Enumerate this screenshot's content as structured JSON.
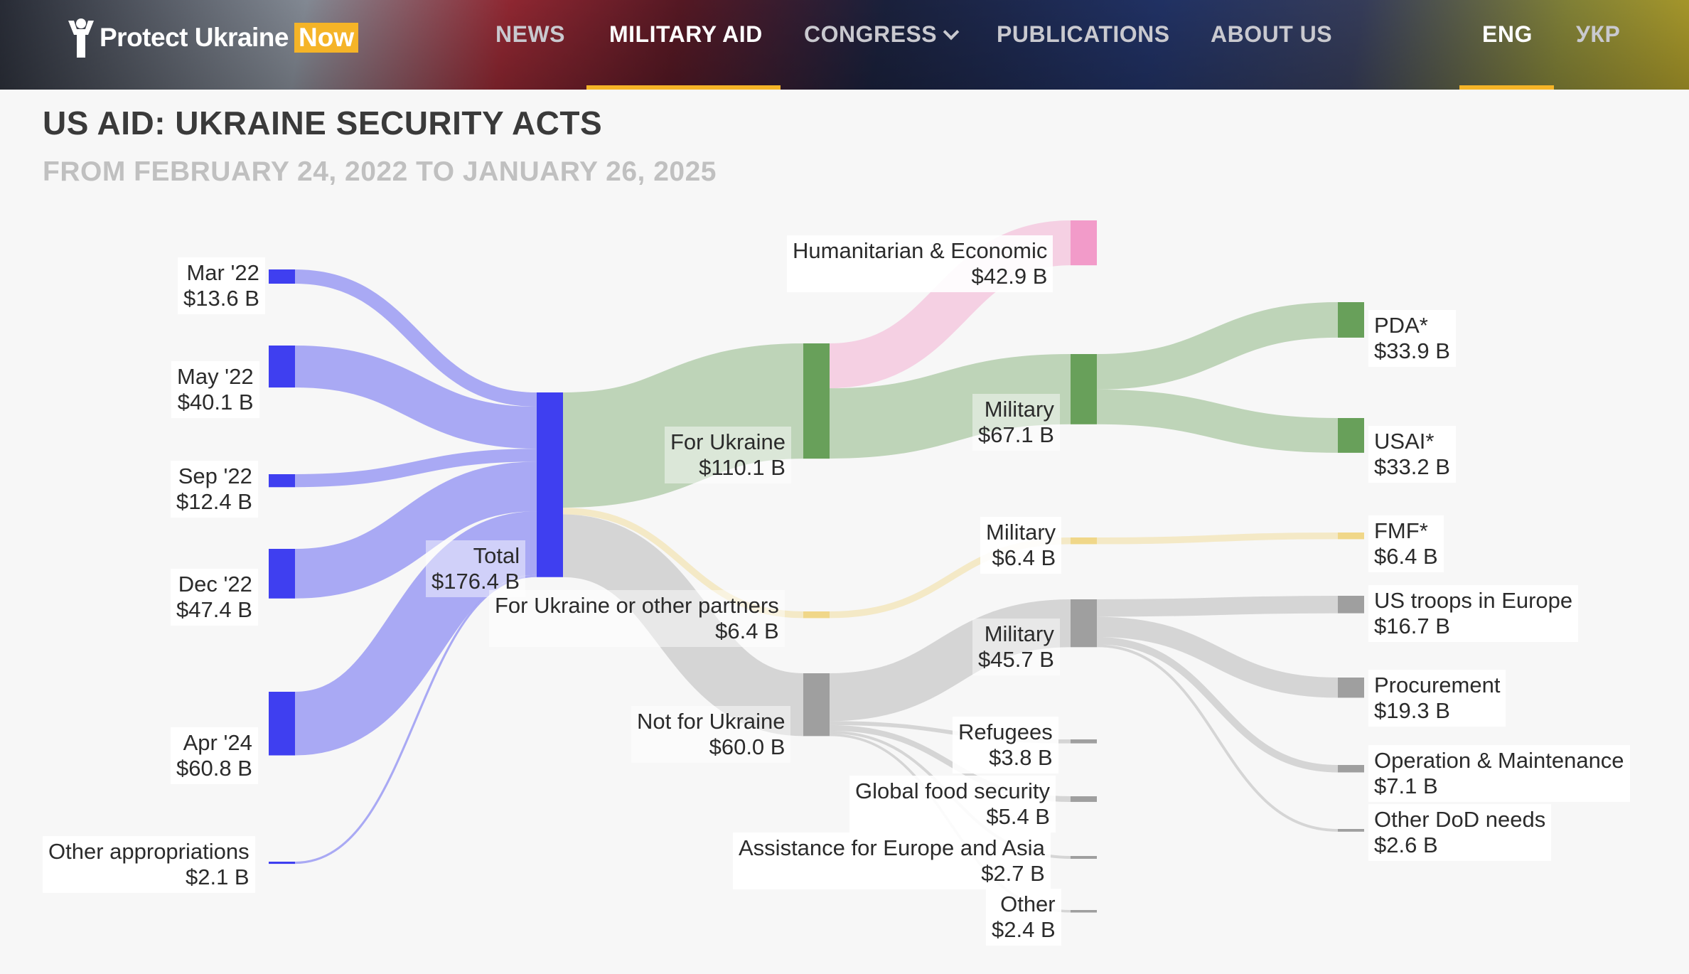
{
  "header": {
    "logo": {
      "text": "Protect Ukraine",
      "badge": "Now",
      "icon": "person-raised-arms-icon"
    },
    "nav": [
      {
        "label": "NEWS"
      },
      {
        "label": "MILITARY AID",
        "active": true
      },
      {
        "label": "CONGRESS",
        "dropdown": true
      },
      {
        "label": "PUBLICATIONS"
      },
      {
        "label": "ABOUT US"
      }
    ],
    "lang": [
      {
        "label": "ENG",
        "active": true
      },
      {
        "label": "УКР"
      }
    ]
  },
  "page": {
    "title": "US AID: UKRAINE SECURITY ACTS",
    "subtitle": "FROM FEBRUARY 24, 2022 TO JANUARY 26, 2025"
  },
  "colors": {
    "accent": "#f5b427",
    "sources": "#3f3ff0",
    "for_ukraine": "#68a05a",
    "humanitarian": "#f29bc9",
    "fmf": "#f0d789",
    "not_for_ukraine": "#9f9f9f"
  },
  "chart_data": {
    "type": "sankey",
    "unit": "$ B",
    "nodes": [
      {
        "id": "mar22",
        "name": "Mar '22",
        "value_label": "$13.6 B",
        "value": 13.6
      },
      {
        "id": "may22",
        "name": "May '22",
        "value_label": "$40.1 B",
        "value": 40.1
      },
      {
        "id": "sep22",
        "name": "Sep '22",
        "value_label": "$12.4 B",
        "value": 12.4
      },
      {
        "id": "dec22",
        "name": "Dec '22",
        "value_label": "$47.4 B",
        "value": 47.4
      },
      {
        "id": "apr24",
        "name": "Apr '24",
        "value_label": "$60.8 B",
        "value": 60.8
      },
      {
        "id": "other_app",
        "name": "Other appropriations",
        "value_label": "$2.1 B",
        "value": 2.1
      },
      {
        "id": "total",
        "name": "Total",
        "value_label": "$176.4 B",
        "value": 176.4
      },
      {
        "id": "for_ukraine",
        "name": "For Ukraine",
        "value_label": "$110.1 B",
        "value": 110.1
      },
      {
        "id": "partners",
        "name": "For Ukraine or other partners",
        "value_label": "$6.4 B",
        "value": 6.4
      },
      {
        "id": "not_ukraine",
        "name": "Not for Ukraine",
        "value_label": "$60.0 B",
        "value": 60.0
      },
      {
        "id": "humanitarian",
        "name": "Humanitarian & Economic",
        "value_label": "$42.9 B",
        "value": 42.9
      },
      {
        "id": "mil_ua",
        "name": "Military",
        "value_label": "$67.1 B",
        "value": 67.1
      },
      {
        "id": "mil_fmf",
        "name": "Military",
        "value_label": "$6.4 B",
        "value": 6.4
      },
      {
        "id": "mil_other",
        "name": "Military",
        "value_label": "$45.7 B",
        "value": 45.7
      },
      {
        "id": "refugees",
        "name": "Refugees",
        "value_label": "$3.8 B",
        "value": 3.8
      },
      {
        "id": "food",
        "name": "Global food security",
        "value_label": "$5.4 B",
        "value": 5.4
      },
      {
        "id": "europe_asia",
        "name": "Assistance for Europe and Asia",
        "value_label": "$2.7 B",
        "value": 2.7
      },
      {
        "id": "other",
        "name": "Other",
        "value_label": "$2.4 B",
        "value": 2.4
      },
      {
        "id": "pda",
        "name": "PDA*",
        "value_label": "$33.9 B",
        "value": 33.9
      },
      {
        "id": "usai",
        "name": "USAI*",
        "value_label": "$33.2 B",
        "value": 33.2
      },
      {
        "id": "fmf",
        "name": "FMF*",
        "value_label": "$6.4 B",
        "value": 6.4
      },
      {
        "id": "troops",
        "name": "US troops in Europe",
        "value_label": "$16.7 B",
        "value": 16.7
      },
      {
        "id": "procurement",
        "name": "Procurement",
        "value_label": "$19.3 B",
        "value": 19.3
      },
      {
        "id": "om",
        "name": "Operation & Maintenance",
        "value_label": "$7.1 B",
        "value": 7.1
      },
      {
        "id": "other_dod",
        "name": "Other DoD needs",
        "value_label": "$2.6 B",
        "value": 2.6
      }
    ],
    "links": [
      {
        "source": "mar22",
        "target": "total",
        "value": 13.6
      },
      {
        "source": "may22",
        "target": "total",
        "value": 40.1
      },
      {
        "source": "sep22",
        "target": "total",
        "value": 12.4
      },
      {
        "source": "dec22",
        "target": "total",
        "value": 47.4
      },
      {
        "source": "apr24",
        "target": "total",
        "value": 60.8
      },
      {
        "source": "other_app",
        "target": "total",
        "value": 2.1
      },
      {
        "source": "total",
        "target": "for_ukraine",
        "value": 110.1
      },
      {
        "source": "total",
        "target": "partners",
        "value": 6.4
      },
      {
        "source": "total",
        "target": "not_ukraine",
        "value": 60.0
      },
      {
        "source": "for_ukraine",
        "target": "humanitarian",
        "value": 42.9
      },
      {
        "source": "for_ukraine",
        "target": "mil_ua",
        "value": 67.1
      },
      {
        "source": "partners",
        "target": "mil_fmf",
        "value": 6.4
      },
      {
        "source": "not_ukraine",
        "target": "mil_other",
        "value": 45.7
      },
      {
        "source": "not_ukraine",
        "target": "refugees",
        "value": 3.8
      },
      {
        "source": "not_ukraine",
        "target": "food",
        "value": 5.4
      },
      {
        "source": "not_ukraine",
        "target": "europe_asia",
        "value": 2.7
      },
      {
        "source": "not_ukraine",
        "target": "other",
        "value": 2.4
      },
      {
        "source": "mil_ua",
        "target": "pda",
        "value": 33.9
      },
      {
        "source": "mil_ua",
        "target": "usai",
        "value": 33.2
      },
      {
        "source": "mil_fmf",
        "target": "fmf",
        "value": 6.4
      },
      {
        "source": "mil_other",
        "target": "troops",
        "value": 16.7
      },
      {
        "source": "mil_other",
        "target": "procurement",
        "value": 19.3
      },
      {
        "source": "mil_other",
        "target": "om",
        "value": 7.1
      },
      {
        "source": "mil_other",
        "target": "other_dod",
        "value": 2.6
      }
    ]
  }
}
